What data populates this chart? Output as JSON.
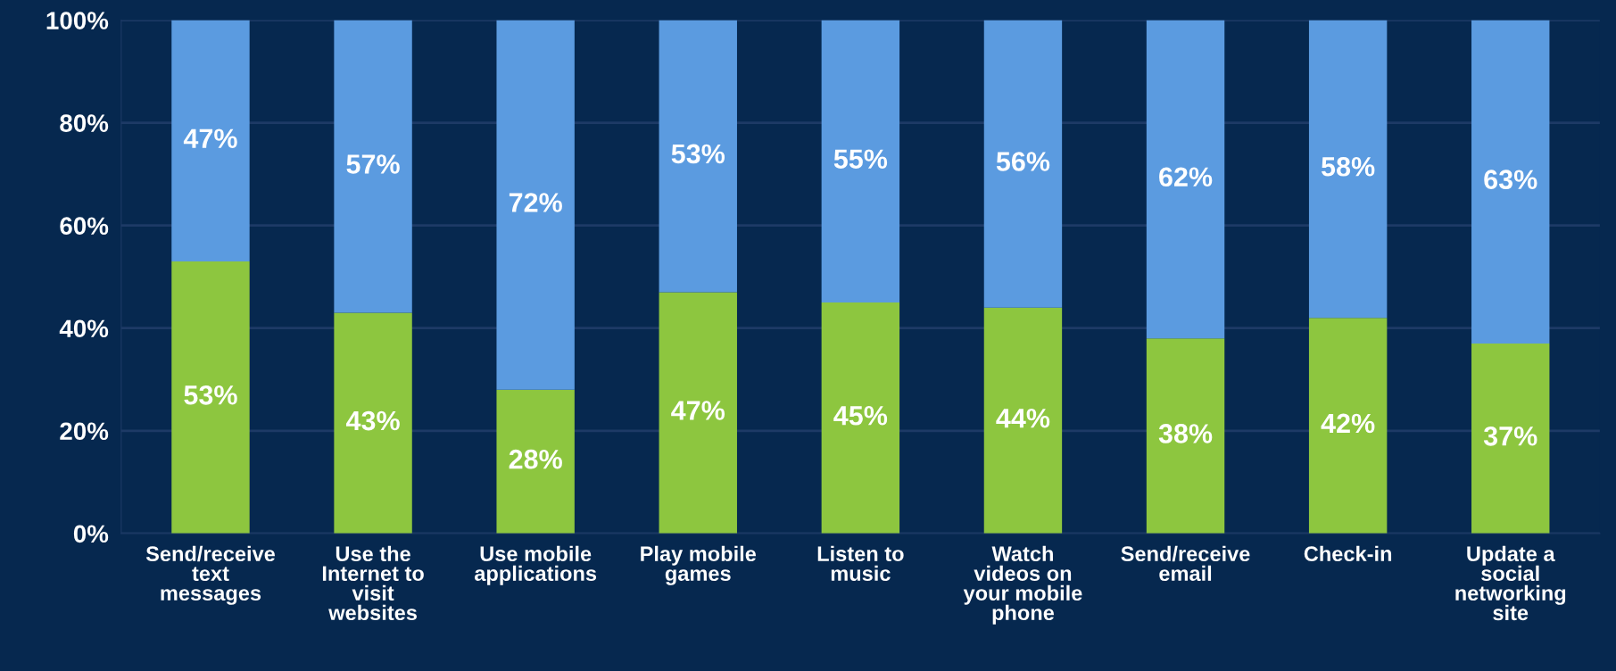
{
  "chart_data": {
    "type": "bar",
    "stacked": true,
    "grid": "y",
    "categories": [
      "Send/receive\ntext\nmessages",
      "Use the\nInternet to\nvisit\nwebsites",
      "Use mobile\napplications",
      "Play mobile\ngames",
      "Listen to\nmusic",
      "Watch\nvideos on\nyour mobile\nphone",
      "Send/receive\nemail",
      "Check-in",
      "Update a\nsocial\nnetworking\nsite"
    ],
    "series": [
      {
        "color": "#8dc63f",
        "values": [
          53,
          43,
          28,
          47,
          45,
          44,
          38,
          42,
          37
        ],
        "value_labels": [
          "53%",
          "43%",
          "28%",
          "47%",
          "45%",
          "44%",
          "38%",
          "42%",
          "37%"
        ]
      },
      {
        "color": "#5b9be0",
        "values": [
          47,
          57,
          72,
          53,
          55,
          56,
          62,
          58,
          63
        ],
        "value_labels": [
          "47%",
          "57%",
          "72%",
          "53%",
          "55%",
          "56%",
          "62%",
          "58%",
          "63%"
        ]
      }
    ],
    "ylim": [
      0,
      100
    ],
    "yticks": [
      {
        "value": 0,
        "label": "0%"
      },
      {
        "value": 20,
        "label": "20%"
      },
      {
        "value": 40,
        "label": "40%"
      },
      {
        "value": 60,
        "label": "60%"
      },
      {
        "value": 80,
        "label": "80%"
      },
      {
        "value": 100,
        "label": "100%"
      }
    ]
  }
}
